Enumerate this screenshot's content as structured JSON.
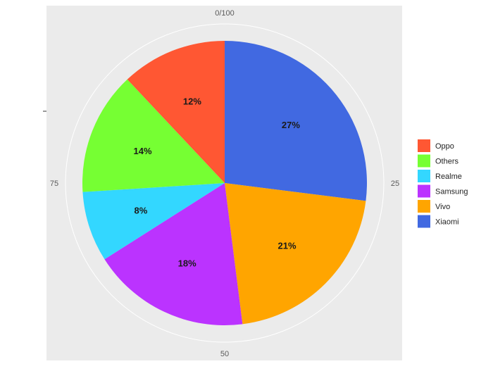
{
  "chart_data": {
    "type": "pie",
    "title": "",
    "categories": [
      "Oppo",
      "Others",
      "Realme",
      "Samsung",
      "Vivo",
      "Xiaomi"
    ],
    "values": [
      12,
      14,
      8,
      18,
      21,
      27
    ],
    "labels": [
      "12%",
      "14%",
      "8%",
      "18%",
      "21%",
      "27%"
    ],
    "colors": [
      "#FF5733",
      "#76FF33",
      "#33D7FF",
      "#BB33FF",
      "#FFA500",
      "#4169E1"
    ],
    "angular_axis": {
      "ticks": [
        0,
        25,
        50,
        75
      ],
      "tick_labels": [
        "0/100",
        "25",
        "50",
        "75"
      ],
      "range": [
        0,
        100
      ]
    },
    "legend": {
      "placement": "right",
      "entries": [
        "Oppo",
        "Others",
        "Realme",
        "Samsung",
        "Vivo",
        "Xiaomi"
      ]
    },
    "panel_background": "#EBEBEB",
    "grid_color": "#FFFFFF"
  }
}
